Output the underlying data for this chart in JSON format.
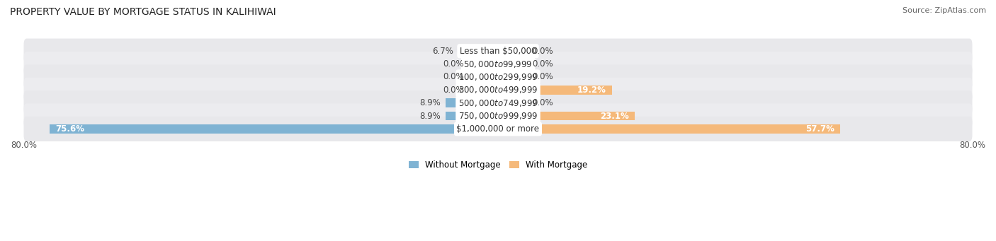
{
  "title": "PROPERTY VALUE BY MORTGAGE STATUS IN KALIHIWAI",
  "source": "Source: ZipAtlas.com",
  "categories": [
    "Less than $50,000",
    "$50,000 to $99,999",
    "$100,000 to $299,999",
    "$300,000 to $499,999",
    "$500,000 to $749,999",
    "$750,000 to $999,999",
    "$1,000,000 or more"
  ],
  "without_mortgage": [
    6.7,
    0.0,
    0.0,
    0.0,
    8.9,
    8.9,
    75.6
  ],
  "with_mortgage": [
    0.0,
    0.0,
    0.0,
    19.2,
    0.0,
    23.1,
    57.7
  ],
  "color_without": "#7fb3d3",
  "color_with": "#f5b97a",
  "row_bg_colors": [
    "#e8e8eb",
    "#ececef"
  ],
  "row_separator_color": "#ffffff",
  "x_max": 80.0,
  "stub_value": 5.0,
  "legend_labels": [
    "Without Mortgage",
    "With Mortgage"
  ],
  "title_fontsize": 10,
  "source_fontsize": 8,
  "label_fontsize": 8.5,
  "axis_label_fontsize": 8.5,
  "inside_label_threshold": 15.0
}
